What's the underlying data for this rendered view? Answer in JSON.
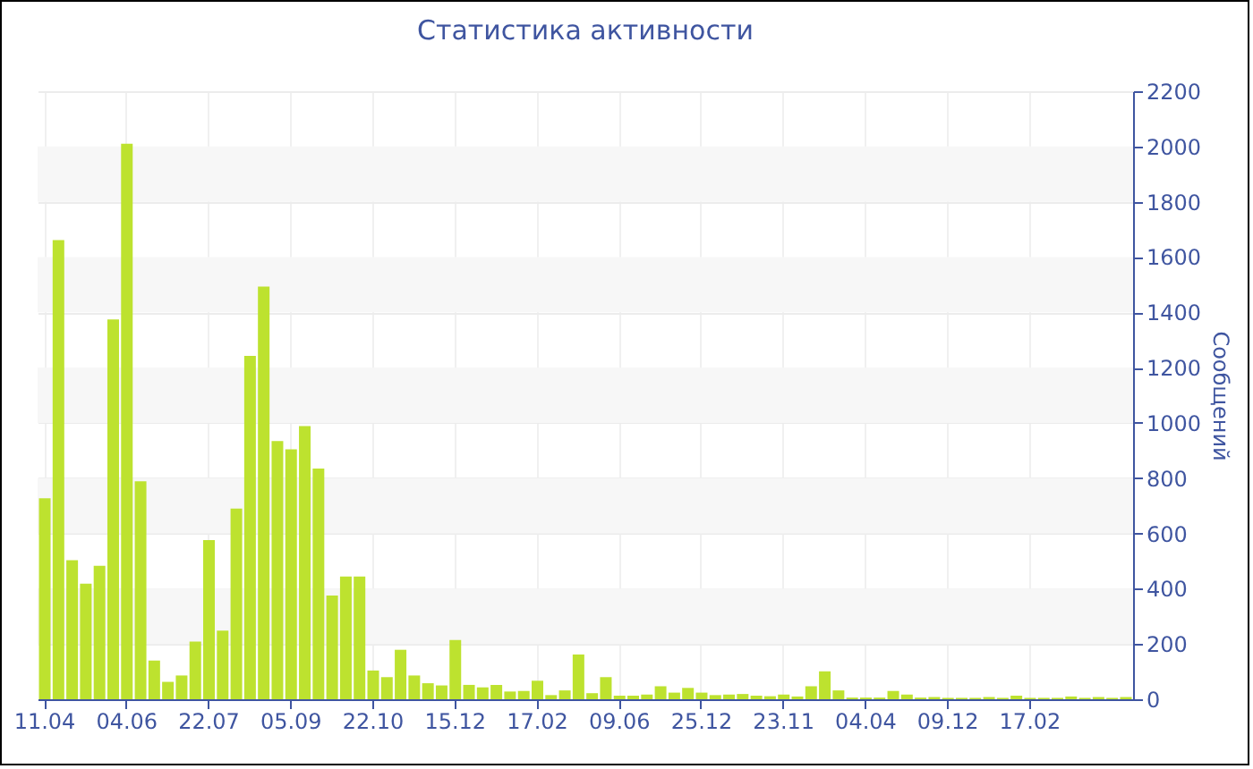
{
  "chart_data": {
    "type": "bar",
    "title": "Статистика активности",
    "ylabel": "Сообщений",
    "categories": [
      "11.04",
      null,
      null,
      null,
      null,
      null,
      "04.06",
      null,
      null,
      null,
      null,
      null,
      "22.07",
      null,
      null,
      null,
      null,
      null,
      "05.09",
      null,
      null,
      null,
      null,
      null,
      "22.10",
      null,
      null,
      null,
      null,
      null,
      "15.12",
      null,
      null,
      null,
      null,
      null,
      "17.02",
      null,
      null,
      null,
      null,
      null,
      "09.06",
      null,
      null,
      null,
      null,
      null,
      "25.12",
      null,
      null,
      null,
      null,
      null,
      "23.11",
      null,
      null,
      null,
      null,
      null,
      "04.04",
      null,
      null,
      null,
      null,
      null,
      "09.12",
      null,
      null,
      null,
      null,
      null,
      "17.02",
      null,
      null,
      null,
      null,
      null,
      null,
      null
    ],
    "values": [
      727,
      1661,
      503,
      418,
      483,
      1374,
      2010,
      789,
      140,
      63,
      86,
      209,
      576,
      248,
      690,
      1242,
      1493,
      934,
      904,
      988,
      835,
      375,
      444,
      444,
      104,
      80,
      179,
      86,
      58,
      50,
      214,
      52,
      43,
      52,
      28,
      30,
      67,
      15,
      32,
      162,
      22,
      80,
      13,
      13,
      17,
      47,
      24,
      41,
      24,
      15,
      17,
      19,
      13,
      11,
      17,
      10,
      47,
      101,
      32,
      6,
      6,
      6,
      30,
      17,
      6,
      8,
      5,
      5,
      5,
      8,
      5,
      13,
      5,
      5,
      5,
      10,
      5,
      8,
      5,
      8
    ],
    "color": "#bde22f",
    "ylim": [
      0,
      2200
    ],
    "yticks": [
      0,
      200,
      400,
      600,
      800,
      1000,
      1200,
      1400,
      1600,
      1800,
      2000,
      2200
    ],
    "grid": true
  }
}
